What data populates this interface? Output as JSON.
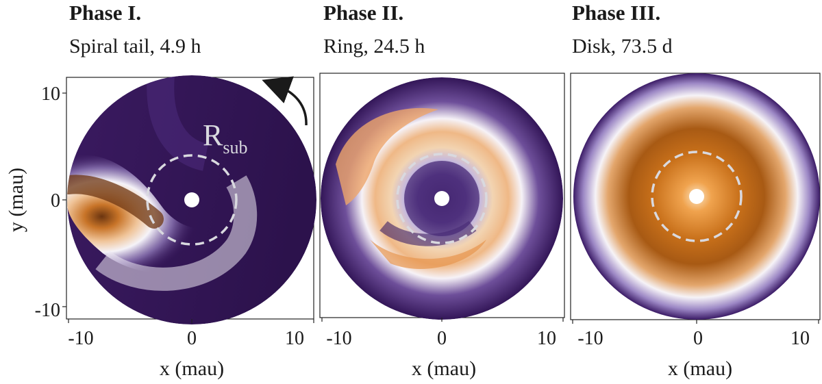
{
  "chart_data": [
    {
      "type": "heatmap",
      "title": "Phase I.",
      "subtitle": "Spiral tail, 4.9 h",
      "morphology": "spiral tail",
      "time": "4.9 h",
      "xlabel": "x (mau)",
      "ylabel": "y (mau)",
      "xlim": [
        -11,
        11
      ],
      "ylim": [
        -11,
        11
      ],
      "xticks": [
        "-10",
        "0",
        "10"
      ],
      "yticks": [
        "10",
        "0",
        "-10"
      ],
      "inner_hole_radius": 1.0,
      "disk_radius": 11,
      "dashed_circle": {
        "radius": 4,
        "label": "R",
        "label_sub": "sub"
      },
      "rotation_arrow": "counter-clockwise"
    },
    {
      "type": "heatmap",
      "title": "Phase II.",
      "subtitle": "Ring, 24.5 h",
      "morphology": "ring",
      "time": "24.5 h",
      "xlabel": "x (mau)",
      "ylabel": "",
      "xlim": [
        -11,
        11
      ],
      "ylim": [
        -11,
        11
      ],
      "xticks": [
        "-10",
        "0",
        "10"
      ],
      "yticks": [],
      "inner_hole_radius": 1.0,
      "disk_radius": 11,
      "dashed_circle": {
        "radius": 4
      }
    },
    {
      "type": "heatmap",
      "title": "Phase III.",
      "subtitle": "Disk, 73.5 d",
      "morphology": "disk",
      "time": "73.5 d",
      "xlabel": "x (mau)",
      "ylabel": "",
      "xlim": [
        -11,
        11
      ],
      "ylim": [
        -11,
        11
      ],
      "xticks": [
        "-10",
        "0",
        "10"
      ],
      "yticks": [],
      "inner_hole_radius": 1.0,
      "disk_radius": 11,
      "dashed_circle": {
        "radius": 4
      }
    }
  ],
  "colors": {
    "low": "#2f1552",
    "mid": "#f4f2f8",
    "high": "#c8701a",
    "peak": "#7a3a10",
    "dashed": "#d9d9df"
  }
}
